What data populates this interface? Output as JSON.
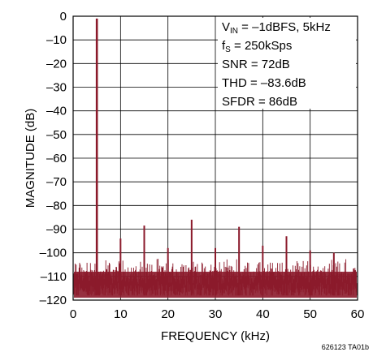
{
  "chart_data": {
    "type": "line",
    "title": "",
    "xlabel": "FREQUENCY (kHz)",
    "ylabel": "MAGNITUDE (dB)",
    "xlim": [
      0,
      60
    ],
    "ylim": [
      -120,
      0
    ],
    "x_ticks": [
      "0",
      "10",
      "20",
      "30",
      "40",
      "50",
      "60"
    ],
    "y_ticks": [
      "0",
      "–10",
      "–20",
      "–30",
      "–40",
      "–50",
      "–60",
      "–70",
      "–80",
      "–90",
      "–100",
      "–110",
      "–120"
    ],
    "grid": true,
    "series_color": "#8b1a2b",
    "noise_floor_db": [
      -118,
      -101
    ],
    "peaks": [
      {
        "x": 5,
        "y": -1
      },
      {
        "x": 10,
        "y": -94
      },
      {
        "x": 15,
        "y": -88.5
      },
      {
        "x": 20,
        "y": -98
      },
      {
        "x": 25,
        "y": -86
      },
      {
        "x": 30,
        "y": -98
      },
      {
        "x": 35,
        "y": -89
      },
      {
        "x": 40,
        "y": -97
      },
      {
        "x": 45,
        "y": -93
      },
      {
        "x": 50,
        "y": -99
      },
      {
        "x": 55,
        "y": -100
      }
    ]
  },
  "annotations": {
    "vin_main": "V",
    "vin_sub": "IN",
    "vin_rest": " = –1dBFS, 5kHz",
    "fs_main": "f",
    "fs_sub": "S",
    "fs_rest": " = 250kSps",
    "snr": "SNR = 72dB",
    "thd": "THD = –83.6dB",
    "sfdr": "SFDR = 86dB"
  },
  "figure_code": "626123 TA01b"
}
